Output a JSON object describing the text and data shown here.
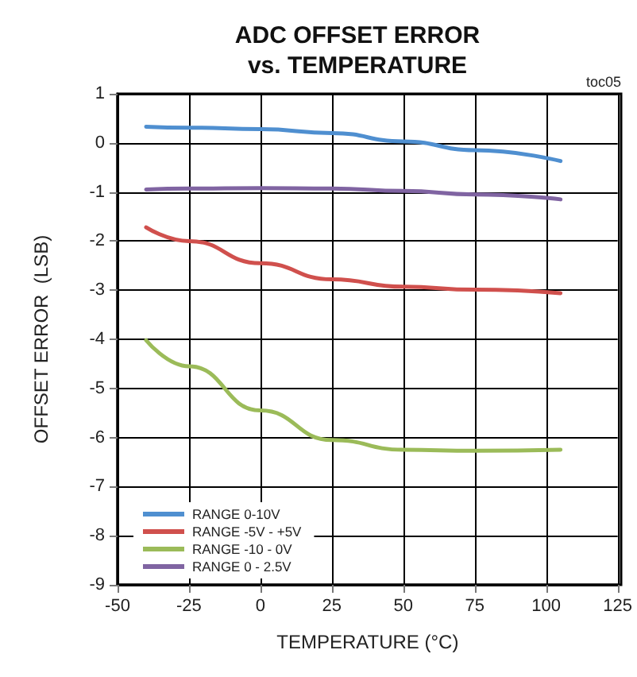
{
  "chart_data": {
    "type": "line",
    "title": "ADC OFFSET ERROR\nvs. TEMPERATURE",
    "xlabel": "TEMPERATURE (°C)",
    "ylabel": "OFFSET ERROR  (LSB)",
    "annotations": [
      "toc05"
    ],
    "x": [
      -40,
      -25,
      0,
      25,
      50,
      75,
      105
    ],
    "series": [
      {
        "name": "RANGE 0-10V",
        "color": "#4f8fd0",
        "values": [
          0.33,
          0.31,
          0.28,
          0.2,
          0.03,
          -0.15,
          -0.37
        ]
      },
      {
        "name": "RANGE -5V - +5V",
        "color": "#d0504d",
        "values": [
          -1.72,
          -2.0,
          -2.45,
          -2.78,
          -2.93,
          -2.99,
          -3.06
        ]
      },
      {
        "name": "RANGE -10 - 0V",
        "color": "#9bbb59",
        "values": [
          -4.02,
          -4.55,
          -5.45,
          -6.05,
          -6.25,
          -6.27,
          -6.25
        ]
      },
      {
        "name": "RANGE 0 - 2.5V",
        "color": "#8064a2",
        "values": [
          -0.95,
          -0.93,
          -0.92,
          -0.93,
          -0.98,
          -1.05,
          -1.15
        ]
      }
    ],
    "xlim": [
      -50,
      125
    ],
    "xticks": [
      -50,
      -25,
      0,
      25,
      50,
      75,
      100,
      125
    ],
    "ylim": [
      -9,
      1
    ],
    "yticks": [
      -9,
      -8,
      -7,
      -6,
      -5,
      -4,
      -3,
      -2,
      -1,
      0,
      1
    ],
    "grid": true,
    "legend": "bottom left",
    "marker": "none",
    "line_style": "solid"
  }
}
